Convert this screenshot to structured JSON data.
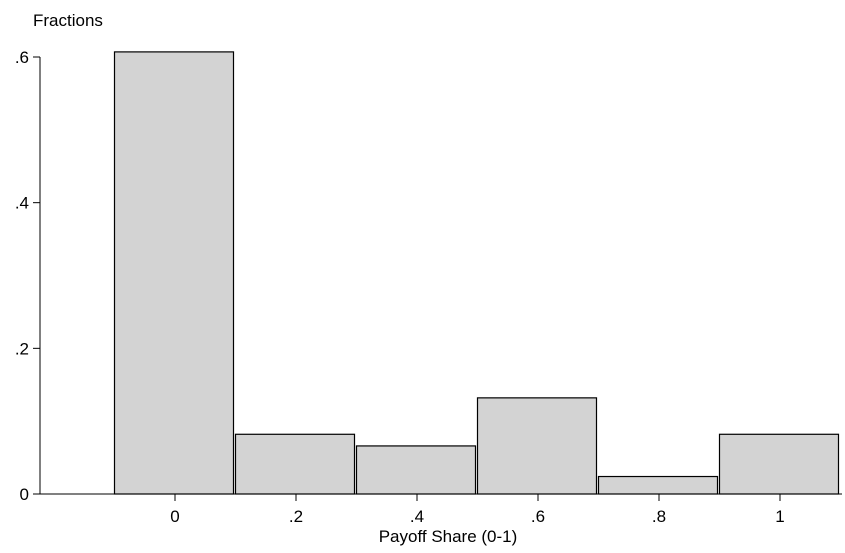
{
  "chart_data": {
    "type": "bar",
    "title": "",
    "ylabel": "Fractions",
    "xlabel": "Payoff Share (0-1)",
    "x": [
      0,
      0.2,
      0.4,
      0.6,
      0.8,
      1
    ],
    "bin_width": 0.2,
    "values": [
      0.607,
      0.082,
      0.066,
      0.132,
      0.024,
      0.082
    ],
    "xlim": [
      -0.2,
      1.1
    ],
    "ylim": [
      0,
      0.6
    ],
    "x_ticks": [
      0,
      0.2,
      0.4,
      0.6,
      0.8,
      1
    ],
    "x_tick_labels": [
      "0",
      ".2",
      ".4",
      ".6",
      ".8",
      "1"
    ],
    "y_ticks": [
      0,
      0.2,
      0.4,
      0.6
    ],
    "y_tick_labels": [
      "0",
      ".2",
      ".4",
      ".6"
    ],
    "grid": false,
    "legend": "none",
    "bar_fill": "#d3d3d3",
    "bar_stroke": "#000000"
  }
}
